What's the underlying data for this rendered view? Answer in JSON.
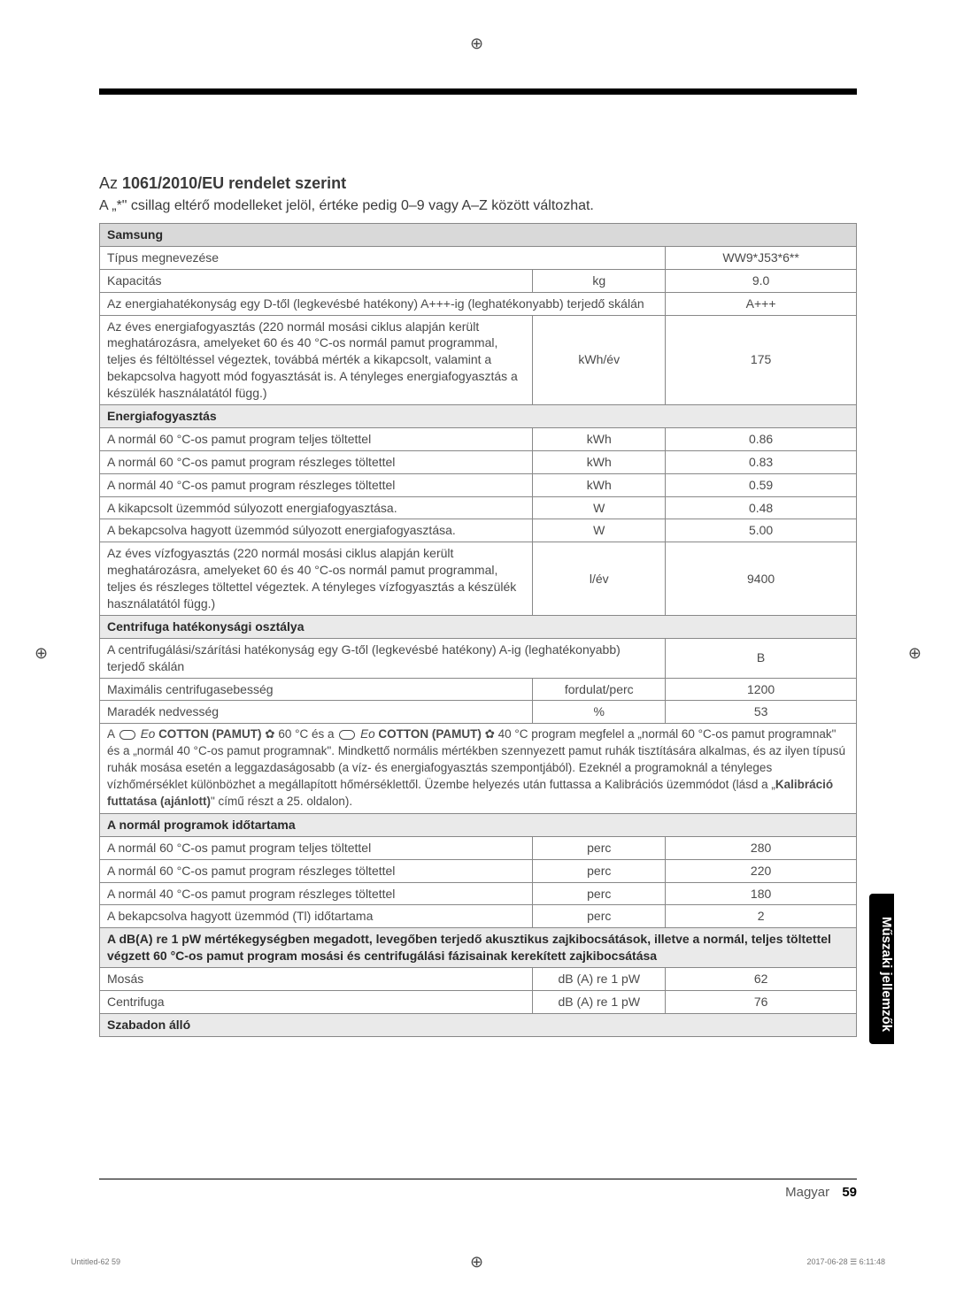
{
  "heading_prefix": "Az ",
  "heading_bold": "1061/2010/EU rendelet szerint",
  "subheading": "A „*\" csillag eltérő modelleket jelöl, értéke pedig 0–9 vagy A–Z között változhat.",
  "brand": "Samsung",
  "rows": {
    "model_label": "Típus megnevezése",
    "model_value": "WW9*J53*6**",
    "capacity_label": "Kapacitás",
    "capacity_unit": "kg",
    "capacity_value": "9.0",
    "eff_label": "Az energiahatékonyság egy D-től (legkevésbé hatékony) A+++-ig (leghatékonyabb) terjedő skálán",
    "eff_value": "A+++",
    "annual_label": "Az éves energiafogyasztás (220 normál mosási ciklus alapján került meghatározásra, amelyeket 60 és 40 °C-os normál pamut programmal, teljes és féltöltéssel végeztek, továbbá mérték a kikapcsolt, valamint a bekapcsolva hagyott mód fogyasztását is. A tényleges energiafogyasztás a készülék használatától függ.)",
    "annual_unit": "kWh/év",
    "annual_value": "175",
    "sec_energy": "Energiafogyasztás",
    "e60f_label": "A normál 60 °C-os pamut program teljes töltettel",
    "e60f_unit": "kWh",
    "e60f_val": "0.86",
    "e60p_label": "A normál 60 °C-os pamut program részleges töltettel",
    "e60p_unit": "kWh",
    "e60p_val": "0.83",
    "e40p_label": "A normál 40 °C-os pamut program részleges töltettel",
    "e40p_unit": "kWh",
    "e40p_val": "0.59",
    "off_label": "A kikapcsolt üzemmód súlyozott energiafogyasztása.",
    "off_unit": "W",
    "off_val": "0.48",
    "lefton_label": "A bekapcsolva hagyott üzemmód súlyozott energiafogyasztása.",
    "lefton_unit": "W",
    "lefton_val": "5.00",
    "water_label": "Az éves vízfogyasztás (220 normál mosási ciklus alapján került meghatározásra, amelyeket 60 és 40 °C-os normál pamut programmal, teljes és részleges töltettel végeztek. A tényleges vízfogyasztás a készülék használatától függ.)",
    "water_unit": "l/év",
    "water_val": "9400",
    "sec_spin": "Centrifuga hatékonysági osztálya",
    "spin_label": "A centrifugálási/szárítási hatékonyság egy G-től (legkevésbé hatékony) A-ig (leghatékonyabb) terjedő skálán",
    "spin_val": "B",
    "maxspin_label": "Maximális centrifugasebesség",
    "maxspin_unit": "fordulat/perc",
    "maxspin_val": "1200",
    "moist_label": "Maradék nedvesség",
    "moist_unit": "%",
    "moist_val": "53",
    "note_prefix": "A ",
    "note_prog": "COTTON (PAMUT)",
    "note_mid1": " 60 °C és a ",
    "note_mid2": " 40 °C program megfelel a „normál 60 °C-os pamut programnak\" és a „normál 40 °C-os pamut programnak\". Mindkettő normális mértékben szennyezett pamut ruhák tisztítására alkalmas, és az ilyen típusú ruhák mosása esetén a leggazdaságosabb (a víz- és energiafogyasztás szempontjából). Ezeknél a programoknál a tényleges vízhőmérséklet különbözhet a megállapított hőmérséklettől. Üzembe helyezés után futtassa a Kalibrációs üzemmódot (lásd a „",
    "note_bold": "Kalibráció futtatása (ajánlott)",
    "note_suffix": "\" című részt a 25. oldalon).",
    "sec_dur": "A normál programok időtartama",
    "d60f_label": "A normál 60 °C-os pamut program teljes töltettel",
    "d60f_unit": "perc",
    "d60f_val": "280",
    "d60p_label": "A normál 60 °C-os pamut program részleges töltettel",
    "d60p_unit": "perc",
    "d60p_val": "220",
    "d40p_label": "A normál 40 °C-os pamut program részleges töltettel",
    "d40p_unit": "perc",
    "d40p_val": "180",
    "tl_label": "A bekapcsolva hagyott üzemmód (Tl) időtartama",
    "tl_unit": "perc",
    "tl_val": "2",
    "noise_hdr": "A dB(A) re 1 pW mértékegységben megadott, levegőben terjedő akusztikus zajkibocsátások, illetve a normál, teljes töltettel végzett 60 °C-os pamut program mosási és centrifugálási fázisainak kerekített zajkibocsátása",
    "wash_label": "Mosás",
    "wash_unit": "dB (A) re 1 pW",
    "wash_val": "62",
    "cent_label": "Centrifuga",
    "cent_unit": "dB (A) re 1 pW",
    "cent_val": "76",
    "free_label": "Szabadon álló"
  },
  "sidetab": "Műszaki jellemzők",
  "footer_lang": "Magyar",
  "footer_page": "59",
  "tiny_left": "Untitled-62   59",
  "tiny_right": "2017-06-28   ☰ 6:11:48"
}
